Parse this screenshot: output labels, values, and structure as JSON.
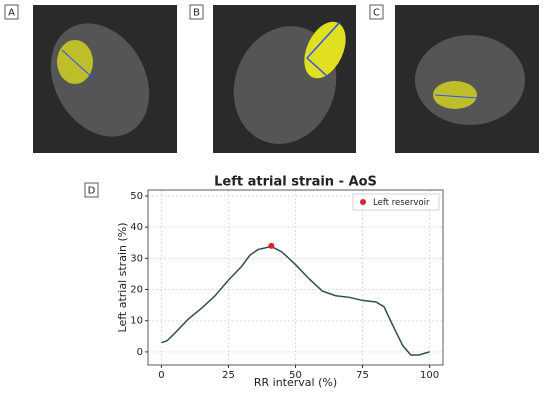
{
  "panel_labels": [
    "A",
    "B",
    "C",
    "D"
  ],
  "chart_data": {
    "type": "line",
    "title": "Left atrial strain - AoS",
    "x_label": "RR interval (%)",
    "y_label": "Left atrial strain (%)",
    "x": [
      0,
      2,
      5,
      10,
      15,
      20,
      25,
      30,
      33,
      36,
      41,
      45,
      50,
      55,
      60,
      65,
      70,
      75,
      80,
      83,
      86,
      90,
      93,
      96,
      100
    ],
    "series": [
      {
        "color": "#2f4f4f",
        "values": [
          3,
          3.5,
          6,
          10.5,
          14,
          18,
          23,
          27.5,
          31,
          32.8,
          33.8,
          32,
          28,
          23.5,
          19.5,
          18,
          17.5,
          16.5,
          16,
          14.5,
          9,
          2,
          -1,
          -1,
          0
        ]
      }
    ],
    "points": [
      {
        "name": "Left reservoir",
        "color": "#d62728",
        "x": 41,
        "y": 34
      }
    ],
    "xlim": [
      -5,
      105
    ],
    "ylim": [
      -4.2,
      51.9
    ],
    "xticks": [
      0,
      25,
      50,
      75,
      100
    ],
    "yticks": [
      0,
      10,
      20,
      30,
      40,
      50
    ],
    "grid": true,
    "legend": "upper right"
  }
}
